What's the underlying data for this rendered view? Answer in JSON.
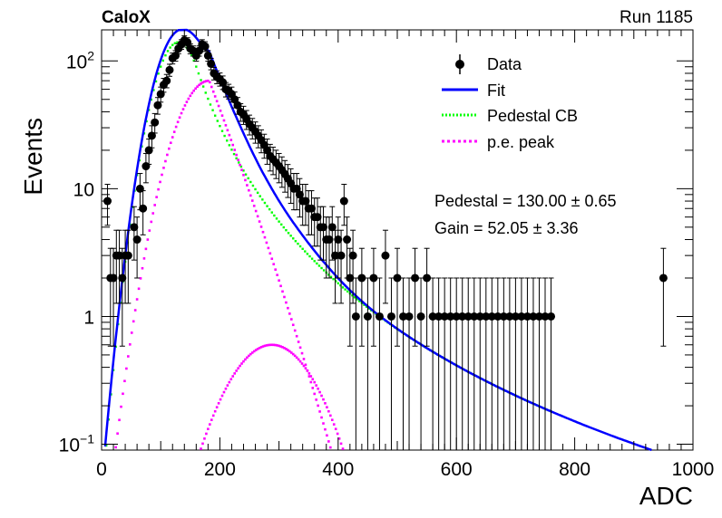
{
  "chart_data": {
    "type": "scatter",
    "title": "CaloX",
    "run_label": "Run 1185",
    "xlabel": "ADC",
    "ylabel": "Events",
    "xlim": [
      0,
      1000
    ],
    "ylim": [
      0.09,
      175
    ],
    "yscale": "log",
    "x_ticks": [
      "0",
      "200",
      "400",
      "600",
      "800",
      "1000"
    ],
    "y_ticks": [
      {
        "value": 0.1,
        "base": "10",
        "exp": "−1"
      },
      {
        "value": 1,
        "base": "1",
        "exp": ""
      },
      {
        "value": 10,
        "base": "10",
        "exp": ""
      },
      {
        "value": 100,
        "base": "10",
        "exp": "2"
      }
    ],
    "legend_position": "top-right",
    "legend": [
      {
        "key": "data",
        "label": "Data",
        "color": "#000000"
      },
      {
        "key": "fit",
        "label": "Fit",
        "color": "#0000ff"
      },
      {
        "key": "pedestal",
        "label": "Pedestal CB",
        "color": "#00ff00"
      },
      {
        "key": "pe",
        "label": "p.e. peak",
        "color": "#ff00ff"
      }
    ],
    "fit_results": {
      "pedestal": "Pedestal = 130.00 ± 0.65",
      "gain": "Gain = 52.05 ± 3.36"
    },
    "series": [
      {
        "name": "Data",
        "kind": "points_with_errors",
        "points": [
          [
            10,
            8
          ],
          [
            15,
            2
          ],
          [
            20,
            2
          ],
          [
            25,
            3
          ],
          [
            30,
            3
          ],
          [
            35,
            2
          ],
          [
            40,
            3
          ],
          [
            45,
            3
          ],
          [
            55,
            5
          ],
          [
            60,
            4
          ],
          [
            65,
            10
          ],
          [
            70,
            7
          ],
          [
            75,
            15
          ],
          [
            80,
            20
          ],
          [
            85,
            26
          ],
          [
            90,
            33
          ],
          [
            95,
            45
          ],
          [
            100,
            55
          ],
          [
            105,
            65
          ],
          [
            110,
            70
          ],
          [
            115,
            85
          ],
          [
            120,
            105
          ],
          [
            125,
            110
          ],
          [
            130,
            125
          ],
          [
            135,
            135
          ],
          [
            140,
            145
          ],
          [
            145,
            140
          ],
          [
            150,
            125
          ],
          [
            155,
            120
          ],
          [
            160,
            110
          ],
          [
            165,
            120
          ],
          [
            170,
            135
          ],
          [
            175,
            130
          ],
          [
            180,
            110
          ],
          [
            185,
            95
          ],
          [
            190,
            80
          ],
          [
            195,
            75
          ],
          [
            200,
            72
          ],
          [
            205,
            68
          ],
          [
            210,
            60
          ],
          [
            215,
            58
          ],
          [
            220,
            55
          ],
          [
            225,
            50
          ],
          [
            230,
            45
          ],
          [
            235,
            40
          ],
          [
            240,
            38
          ],
          [
            245,
            35
          ],
          [
            250,
            32
          ],
          [
            255,
            30
          ],
          [
            260,
            28
          ],
          [
            265,
            26
          ],
          [
            270,
            24
          ],
          [
            275,
            22
          ],
          [
            280,
            20
          ],
          [
            285,
            18
          ],
          [
            290,
            17
          ],
          [
            295,
            16
          ],
          [
            300,
            15
          ],
          [
            305,
            14
          ],
          [
            310,
            13
          ],
          [
            315,
            12
          ],
          [
            320,
            11
          ],
          [
            325,
            10
          ],
          [
            330,
            10
          ],
          [
            335,
            9
          ],
          [
            340,
            8
          ],
          [
            345,
            8
          ],
          [
            350,
            7
          ],
          [
            355,
            7
          ],
          [
            360,
            6
          ],
          [
            365,
            6
          ],
          [
            370,
            5
          ],
          [
            375,
            5
          ],
          [
            380,
            4
          ],
          [
            385,
            4
          ],
          [
            390,
            5
          ],
          [
            395,
            3
          ],
          [
            400,
            4
          ],
          [
            405,
            3
          ],
          [
            410,
            8
          ],
          [
            415,
            4
          ],
          [
            420,
            2
          ],
          [
            425,
            3
          ],
          [
            430,
            1
          ],
          [
            440,
            2
          ],
          [
            450,
            1
          ],
          [
            460,
            2
          ],
          [
            470,
            1
          ],
          [
            480,
            3
          ],
          [
            490,
            1
          ],
          [
            500,
            2
          ],
          [
            510,
            1
          ],
          [
            520,
            1
          ],
          [
            530,
            2
          ],
          [
            540,
            1
          ],
          [
            550,
            2
          ],
          [
            560,
            1
          ],
          [
            570,
            1
          ],
          [
            580,
            1
          ],
          [
            590,
            1
          ],
          [
            600,
            1
          ],
          [
            610,
            1
          ],
          [
            620,
            1
          ],
          [
            630,
            1
          ],
          [
            640,
            1
          ],
          [
            650,
            1
          ],
          [
            660,
            1
          ],
          [
            670,
            1
          ],
          [
            680,
            1
          ],
          [
            690,
            1
          ],
          [
            700,
            1
          ],
          [
            710,
            1
          ],
          [
            720,
            1
          ],
          [
            730,
            1
          ],
          [
            740,
            1
          ],
          [
            750,
            1
          ],
          [
            760,
            1
          ],
          [
            950,
            2
          ]
        ]
      }
    ],
    "curves": {
      "fit": {
        "pedestal_peak": 130.0,
        "pedestal_sigma": 32,
        "pe_peak_1": 182.05,
        "pe_sigma_1": 55
      },
      "pedestal": {
        "peak_value": 140
      },
      "pe": {
        "peak_value": 70,
        "second_peak_value": 0.6,
        "second_peak_x": 288
      }
    }
  }
}
